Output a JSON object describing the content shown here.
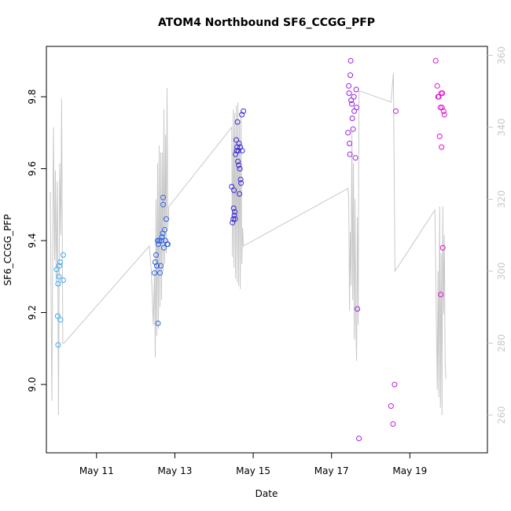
{
  "chart_data": {
    "type": "scatter",
    "title": "ATOM4 Northbound SF6_CCGG_PFP",
    "xlabel": "Date",
    "ylabel": "SF6_CCGG_PFP",
    "xlim": [
      9.72,
      20.98
    ],
    "ylim": [
      8.81,
      9.94
    ],
    "y2lim": [
      249.5,
      362.5
    ],
    "x_ticks": [
      {
        "value": 11,
        "label": "May 11"
      },
      {
        "value": 13,
        "label": "May 13"
      },
      {
        "value": 15,
        "label": "May 15"
      },
      {
        "value": 17,
        "label": "May 17"
      },
      {
        "value": 19,
        "label": "May 19"
      }
    ],
    "y_ticks": [
      {
        "value": 9.0,
        "label": "9.0"
      },
      {
        "value": 9.2,
        "label": "9.2"
      },
      {
        "value": 9.4,
        "label": "9.4"
      },
      {
        "value": 9.6,
        "label": "9.6"
      },
      {
        "value": 9.8,
        "label": "9.8"
      }
    ],
    "y2_ticks": [
      {
        "value": 260,
        "label": "260"
      },
      {
        "value": 280,
        "label": "280"
      },
      {
        "value": 300,
        "label": "300"
      },
      {
        "value": 320,
        "label": "320"
      },
      {
        "value": 340,
        "label": "340"
      },
      {
        "value": 360,
        "label": "360"
      }
    ],
    "points": [
      {
        "x": 9.98,
        "y": 9.32,
        "color": "#3aa8f0"
      },
      {
        "x": 10.02,
        "y": 9.28,
        "color": "#3aa8f0"
      },
      {
        "x": 10.04,
        "y": 9.3,
        "color": "#3aa8f0"
      },
      {
        "x": 10.05,
        "y": 9.33,
        "color": "#3aa8f0"
      },
      {
        "x": 10.07,
        "y": 9.34,
        "color": "#3aa8f0"
      },
      {
        "x": 10.01,
        "y": 9.19,
        "color": "#3aa8f0"
      },
      {
        "x": 10.08,
        "y": 9.18,
        "color": "#3aa8f0"
      },
      {
        "x": 10.02,
        "y": 9.11,
        "color": "#3aa8f0"
      },
      {
        "x": 10.15,
        "y": 9.36,
        "color": "#3aa8f0"
      },
      {
        "x": 10.15,
        "y": 9.29,
        "color": "#3aa8f0"
      },
      {
        "x": 12.48,
        "y": 9.31,
        "color": "#2a62e6"
      },
      {
        "x": 12.5,
        "y": 9.34,
        "color": "#2a62e6"
      },
      {
        "x": 12.52,
        "y": 9.36,
        "color": "#2a62e6"
      },
      {
        "x": 12.54,
        "y": 9.33,
        "color": "#2a62e6"
      },
      {
        "x": 12.56,
        "y": 9.4,
        "color": "#2a62e6"
      },
      {
        "x": 12.57,
        "y": 9.17,
        "color": "#2a62e6"
      },
      {
        "x": 12.58,
        "y": 9.39,
        "color": "#2a62e6"
      },
      {
        "x": 12.6,
        "y": 9.4,
        "color": "#2a62e6"
      },
      {
        "x": 12.62,
        "y": 9.31,
        "color": "#2a62e6"
      },
      {
        "x": 12.64,
        "y": 9.33,
        "color": "#2a62e6"
      },
      {
        "x": 12.65,
        "y": 9.4,
        "color": "#2a62e6"
      },
      {
        "x": 12.67,
        "y": 9.41,
        "color": "#2a62e6"
      },
      {
        "x": 12.69,
        "y": 9.42,
        "color": "#2a62e6"
      },
      {
        "x": 12.7,
        "y": 9.52,
        "color": "#2a62e6"
      },
      {
        "x": 12.7,
        "y": 9.5,
        "color": "#2a62e6"
      },
      {
        "x": 12.72,
        "y": 9.38,
        "color": "#2a62e6"
      },
      {
        "x": 12.74,
        "y": 9.43,
        "color": "#2a62e6"
      },
      {
        "x": 12.76,
        "y": 9.4,
        "color": "#2a62e6"
      },
      {
        "x": 12.78,
        "y": 9.46,
        "color": "#2a62e6"
      },
      {
        "x": 12.8,
        "y": 9.39,
        "color": "#2a62e6"
      },
      {
        "x": 12.82,
        "y": 9.39,
        "color": "#2a62e6"
      },
      {
        "x": 14.45,
        "y": 9.55,
        "color": "#3a2ad8"
      },
      {
        "x": 14.47,
        "y": 9.45,
        "color": "#3a2ad8"
      },
      {
        "x": 14.49,
        "y": 9.46,
        "color": "#3a2ad8"
      },
      {
        "x": 14.5,
        "y": 9.49,
        "color": "#3a2ad8"
      },
      {
        "x": 14.51,
        "y": 9.54,
        "color": "#3a2ad8"
      },
      {
        "x": 14.52,
        "y": 9.47,
        "color": "#3a2ad8"
      },
      {
        "x": 14.53,
        "y": 9.48,
        "color": "#3a2ad8"
      },
      {
        "x": 14.54,
        "y": 9.46,
        "color": "#3a2ad8"
      },
      {
        "x": 14.55,
        "y": 9.64,
        "color": "#3a2ad8"
      },
      {
        "x": 14.57,
        "y": 9.68,
        "color": "#3a2ad8"
      },
      {
        "x": 14.58,
        "y": 9.65,
        "color": "#3a2ad8"
      },
      {
        "x": 14.59,
        "y": 9.66,
        "color": "#3a2ad8"
      },
      {
        "x": 14.6,
        "y": 9.73,
        "color": "#3a2ad8"
      },
      {
        "x": 14.61,
        "y": 9.62,
        "color": "#3a2ad8"
      },
      {
        "x": 14.62,
        "y": 9.65,
        "color": "#3a2ad8"
      },
      {
        "x": 14.63,
        "y": 9.61,
        "color": "#3a2ad8"
      },
      {
        "x": 14.64,
        "y": 9.67,
        "color": "#3a2ad8"
      },
      {
        "x": 14.65,
        "y": 9.53,
        "color": "#3a2ad8"
      },
      {
        "x": 14.66,
        "y": 9.6,
        "color": "#3a2ad8"
      },
      {
        "x": 14.67,
        "y": 9.66,
        "color": "#3a2ad8"
      },
      {
        "x": 14.68,
        "y": 9.57,
        "color": "#3a2ad8"
      },
      {
        "x": 14.69,
        "y": 9.56,
        "color": "#3a2ad8"
      },
      {
        "x": 14.71,
        "y": 9.75,
        "color": "#3a2ad8"
      },
      {
        "x": 14.72,
        "y": 9.65,
        "color": "#3a2ad8"
      },
      {
        "x": 14.75,
        "y": 9.76,
        "color": "#3a2ad8"
      },
      {
        "x": 17.42,
        "y": 9.7,
        "color": "#9a20e0"
      },
      {
        "x": 17.44,
        "y": 9.83,
        "color": "#9a20e0"
      },
      {
        "x": 17.45,
        "y": 9.81,
        "color": "#9a20e0"
      },
      {
        "x": 17.46,
        "y": 9.67,
        "color": "#9a20e0"
      },
      {
        "x": 17.47,
        "y": 9.64,
        "color": "#9a20e0"
      },
      {
        "x": 17.48,
        "y": 9.86,
        "color": "#9a20e0"
      },
      {
        "x": 17.49,
        "y": 9.9,
        "color": "#9a20e0"
      },
      {
        "x": 17.5,
        "y": 9.79,
        "color": "#9a20e0"
      },
      {
        "x": 17.52,
        "y": 9.78,
        "color": "#9a20e0"
      },
      {
        "x": 17.53,
        "y": 9.74,
        "color": "#9a20e0"
      },
      {
        "x": 17.55,
        "y": 9.71,
        "color": "#9a20e0"
      },
      {
        "x": 17.57,
        "y": 9.8,
        "color": "#9a20e0"
      },
      {
        "x": 17.58,
        "y": 9.76,
        "color": "#9a20e0"
      },
      {
        "x": 17.61,
        "y": 9.63,
        "color": "#9a20e0"
      },
      {
        "x": 17.63,
        "y": 9.82,
        "color": "#9a20e0"
      },
      {
        "x": 17.64,
        "y": 9.77,
        "color": "#9a20e0"
      },
      {
        "x": 17.66,
        "y": 9.21,
        "color": "#9a20e0"
      },
      {
        "x": 17.7,
        "y": 8.85,
        "color": "#9a20e0"
      },
      {
        "x": 18.52,
        "y": 8.94,
        "color": "#c01ee0"
      },
      {
        "x": 18.57,
        "y": 8.89,
        "color": "#c01ee0"
      },
      {
        "x": 18.61,
        "y": 9.0,
        "color": "#c01ee0"
      },
      {
        "x": 18.64,
        "y": 9.76,
        "color": "#c01ee0"
      },
      {
        "x": 19.66,
        "y": 9.9,
        "color": "#e010d0"
      },
      {
        "x": 19.7,
        "y": 9.83,
        "color": "#e010d0"
      },
      {
        "x": 19.72,
        "y": 9.8,
        "color": "#e010d0"
      },
      {
        "x": 19.74,
        "y": 9.8,
        "color": "#e010d0"
      },
      {
        "x": 19.76,
        "y": 9.69,
        "color": "#e010d0"
      },
      {
        "x": 19.78,
        "y": 9.77,
        "color": "#e010d0"
      },
      {
        "x": 19.79,
        "y": 9.25,
        "color": "#e010d0"
      },
      {
        "x": 19.8,
        "y": 9.81,
        "color": "#e010d0"
      },
      {
        "x": 19.81,
        "y": 9.66,
        "color": "#e010d0"
      },
      {
        "x": 19.82,
        "y": 9.77,
        "color": "#e010d0"
      },
      {
        "x": 19.83,
        "y": 9.81,
        "color": "#e010d0"
      },
      {
        "x": 19.84,
        "y": 9.38,
        "color": "#e010d0"
      },
      {
        "x": 19.86,
        "y": 9.76,
        "color": "#e010d0"
      },
      {
        "x": 19.88,
        "y": 9.75,
        "color": "#e010d0"
      }
    ],
    "line_color": "#c8c8c8",
    "line_y2": [
      [
        9.82,
        322
      ],
      [
        9.86,
        264
      ],
      [
        9.9,
        340
      ],
      [
        9.93,
        303
      ],
      [
        9.95,
        328
      ],
      [
        9.97,
        297
      ],
      [
        10.0,
        325
      ],
      [
        10.03,
        260
      ],
      [
        10.06,
        330
      ],
      [
        10.09,
        310
      ],
      [
        10.11,
        348
      ],
      [
        10.14,
        280
      ],
      [
        10.17,
        280
      ],
      [
        12.35,
        307
      ],
      [
        12.4,
        300
      ],
      [
        12.45,
        285
      ],
      [
        12.48,
        300
      ],
      [
        12.5,
        276
      ],
      [
        12.52,
        320
      ],
      [
        12.54,
        282
      ],
      [
        12.56,
        330
      ],
      [
        12.58,
        284
      ],
      [
        12.6,
        335
      ],
      [
        12.62,
        290
      ],
      [
        12.64,
        333
      ],
      [
        12.66,
        292
      ],
      [
        12.68,
        333
      ],
      [
        12.7,
        300
      ],
      [
        12.72,
        345
      ],
      [
        12.74,
        302
      ],
      [
        12.76,
        338
      ],
      [
        12.78,
        305
      ],
      [
        12.8,
        351
      ],
      [
        12.82,
        312
      ],
      [
        12.85,
        318
      ],
      [
        14.45,
        340
      ],
      [
        14.47,
        304
      ],
      [
        14.49,
        345
      ],
      [
        14.51,
        301
      ],
      [
        14.53,
        344
      ],
      [
        14.55,
        298
      ],
      [
        14.57,
        346
      ],
      [
        14.59,
        297
      ],
      [
        14.61,
        347
      ],
      [
        14.63,
        296
      ],
      [
        14.65,
        342
      ],
      [
        14.67,
        295
      ],
      [
        14.69,
        344
      ],
      [
        14.71,
        302
      ],
      [
        14.73,
        312
      ],
      [
        14.75,
        307
      ],
      [
        17.42,
        323
      ],
      [
        17.44,
        320
      ],
      [
        17.46,
        289
      ],
      [
        17.48,
        311
      ],
      [
        17.5,
        296
      ],
      [
        17.52,
        339
      ],
      [
        17.54,
        292
      ],
      [
        17.56,
        330
      ],
      [
        17.58,
        281
      ],
      [
        17.6,
        320
      ],
      [
        17.62,
        285
      ],
      [
        17.64,
        275
      ],
      [
        17.66,
        315
      ],
      [
        17.68,
        285
      ],
      [
        17.7,
        350
      ],
      [
        17.75,
        350
      ],
      [
        18.52,
        347
      ],
      [
        18.58,
        355
      ],
      [
        18.62,
        300
      ],
      [
        19.64,
        317
      ],
      [
        19.7,
        267
      ],
      [
        19.72,
        300
      ],
      [
        19.74,
        265
      ],
      [
        19.76,
        318
      ],
      [
        19.78,
        262
      ],
      [
        19.8,
        305
      ],
      [
        19.82,
        260
      ],
      [
        19.84,
        318
      ],
      [
        19.86,
        288
      ],
      [
        19.88,
        310
      ],
      [
        19.9,
        275
      ],
      [
        19.92,
        270
      ]
    ]
  }
}
